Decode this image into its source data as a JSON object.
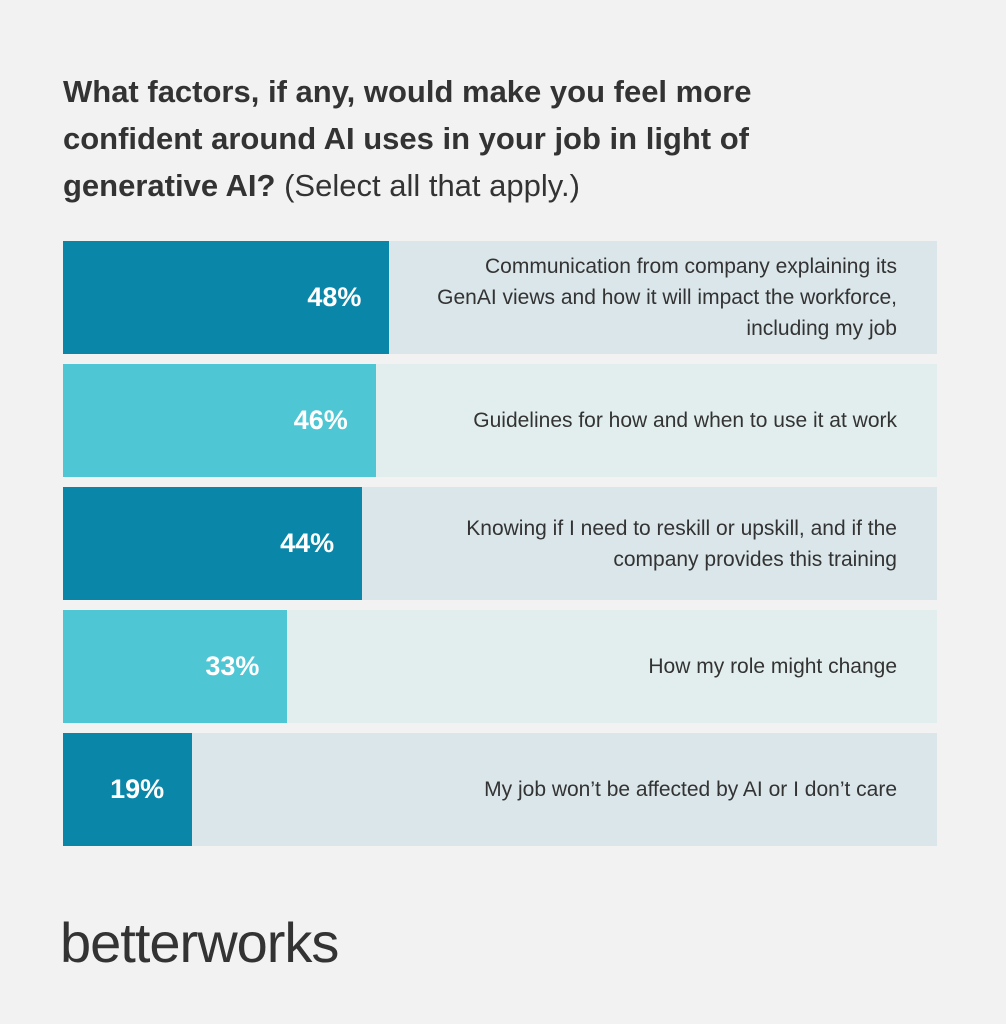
{
  "chart_data": {
    "type": "bar",
    "orientation": "horizontal",
    "title": "What factors, if any, would make you feel more confident around AI uses in your job in light of generative AI?",
    "subtitle": "(Select all that apply.)",
    "categories": [
      "Communication from company explaining its GenAI views and how it will impact the workforce, including my job",
      "Guidelines for how and when to use it at work",
      "Knowing if I need to reskill or upskill, and if the company provides this training",
      "How my role might change",
      "My job won’t be affected by AI or I don’t care"
    ],
    "values": [
      48,
      46,
      44,
      33,
      19
    ],
    "value_labels": [
      "48%",
      "46%",
      "44%",
      "33%",
      "19%"
    ],
    "colors": [
      "#0a87a8",
      "#4ec6d4",
      "#0a87a8",
      "#4ec6d4",
      "#0a87a8"
    ]
  },
  "logo": "betterworks"
}
